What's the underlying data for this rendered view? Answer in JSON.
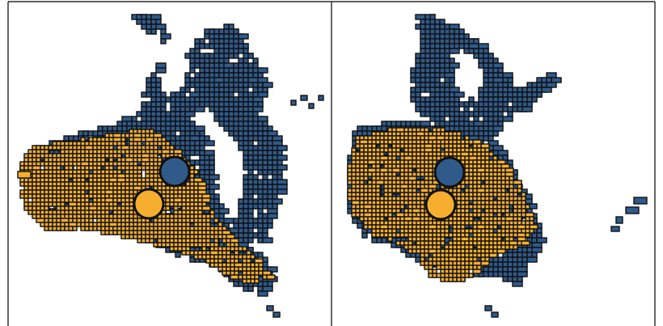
{
  "colors": {
    "group_a": "#2f5a8a",
    "group_b": "#f5ae2e",
    "outline": "#111111",
    "frame": "#000000",
    "background": "#ffffff"
  },
  "panels": [
    {
      "id": "left",
      "groups": [
        {
          "color_key": "group_a",
          "marker": "circle-filled"
        },
        {
          "color_key": "group_b",
          "marker": "circle-filled"
        }
      ]
    },
    {
      "id": "right",
      "groups": [
        {
          "color_key": "group_a",
          "marker": "circle-filled"
        },
        {
          "color_key": "group_b",
          "marker": "circle-filled"
        }
      ]
    }
  ]
}
